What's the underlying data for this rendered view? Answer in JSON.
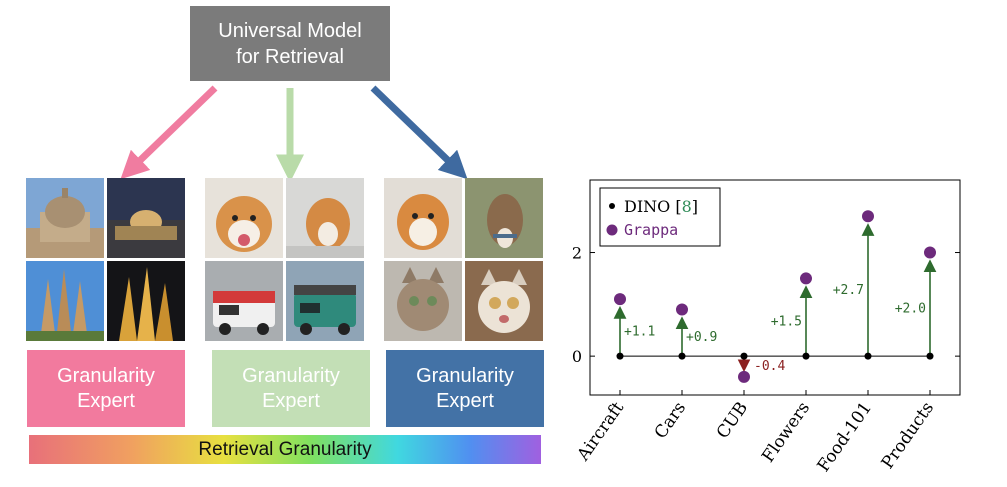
{
  "diagram": {
    "title_lines": [
      "Universal Model",
      "for Retrieval"
    ],
    "experts": [
      {
        "lines": [
          "Granularity",
          "Expert"
        ],
        "color": "#f27a9e"
      },
      {
        "lines": [
          "Granularity",
          "Expert"
        ],
        "color": "#c3dfb6"
      },
      {
        "lines": [
          "Granularity",
          "Expert"
        ],
        "color": "#4372a6"
      }
    ],
    "arrow_colors": [
      "#f07ca0",
      "#b9dba9",
      "#3f6aa0"
    ],
    "granularity_label": "Retrieval Granularity"
  },
  "chart_data": {
    "type": "scatter",
    "categories": [
      "Aircraft",
      "Cars",
      "CUB",
      "Flowers",
      "Food-101",
      "Products"
    ],
    "series": [
      {
        "name": "DINO [8]",
        "values": [
          0,
          0,
          0,
          0,
          0,
          0
        ],
        "color": "#000000"
      },
      {
        "name": "Grappa",
        "values": [
          1.1,
          0.9,
          -0.4,
          1.5,
          2.7,
          2.0
        ],
        "color": "#6d2a7c"
      }
    ],
    "deltas": [
      "+1.1",
      "+0.9",
      "-0.4",
      "+1.5",
      "+2.7",
      "+2.0"
    ],
    "delta_colors": {
      "positive": "#2e6b2e",
      "negative": "#8b2020"
    },
    "legend_ref": "8",
    "ylim": [
      -0.75,
      3.4
    ],
    "yticks": [
      0,
      2
    ],
    "legend_position": "top-left",
    "grid": false
  }
}
